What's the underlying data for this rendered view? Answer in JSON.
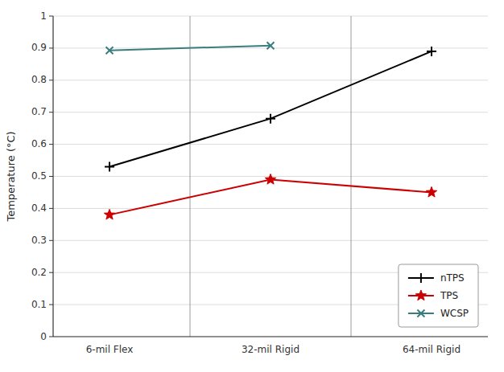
{
  "chart_data": {
    "type": "line",
    "categories": [
      "6-mil Flex",
      "32-mil Rigid",
      "64-mil Rigid"
    ],
    "series": [
      {
        "name": "nTPS",
        "color": "#000000",
        "marker": "plus",
        "values": [
          0.53,
          0.68,
          0.89
        ]
      },
      {
        "name": "TPS",
        "color": "#cc0000",
        "marker": "star",
        "values": [
          0.38,
          0.49,
          0.45
        ]
      },
      {
        "name": "WCSP",
        "color": "#3a7d7d",
        "marker": "x",
        "values": [
          0.893,
          0.908,
          null
        ]
      }
    ],
    "ylabel": "Temperature (°C)",
    "ylim": [
      0,
      1.0
    ],
    "yticks": [
      0,
      0.1,
      0.2,
      0.3,
      0.4,
      0.5,
      0.6,
      0.7,
      0.8,
      0.9,
      1
    ],
    "grid": true,
    "legend": "lower right"
  }
}
